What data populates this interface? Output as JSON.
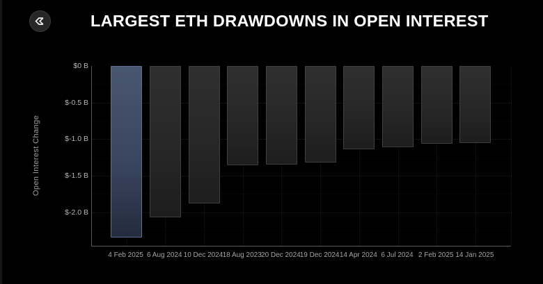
{
  "header": {
    "title": "LARGEST ETH DRAWDOWNS IN OPEN INTEREST",
    "logo": "sigma-mark"
  },
  "chart_data": {
    "type": "bar",
    "title": "LARGEST ETH DRAWDOWNS IN OPEN INTEREST",
    "categories": [
      "4 Feb 2025",
      "6 Aug 2024",
      "10 Dec 2024",
      "18 Aug 2023",
      "20 Dec 2024",
      "19 Dec 2024",
      "14 Apr 2024",
      "6 Jul 2024",
      "2 Feb 2025",
      "14 Jan 2025"
    ],
    "values": [
      -2.35,
      -2.07,
      -1.88,
      -1.36,
      -1.35,
      -1.32,
      -1.14,
      -1.11,
      -1.06,
      -1.05
    ],
    "unit": "billion USD",
    "xlabel": "",
    "ylabel": "Open Interest Change",
    "ylim": [
      -2.46,
      0
    ],
    "yticks": [
      {
        "value": 0,
        "label": "$0 B"
      },
      {
        "value": -0.5,
        "label": "$-0.5 B"
      },
      {
        "value": -1.0,
        "label": "$-1.0 B"
      },
      {
        "value": -1.5,
        "label": "$-1.5 B"
      },
      {
        "value": -2.0,
        "label": "$-2.0 B"
      }
    ],
    "grid": "horizontal-dotted, faint vertical",
    "legend": null,
    "highlight_index": 0,
    "colors": {
      "background": "#000000",
      "title": "#ffffff",
      "highlight_bar_top": "#49566f",
      "highlight_bar_bottom": "#242b3e",
      "highlight_bar_border": "#5e6f93",
      "bar_top": "#2f2f2f",
      "bar_bottom": "#1d1d1d",
      "bar_border": "#404040",
      "axis_line": "#5c5c5c",
      "tick_label": "#b5b5b5",
      "x_label": "#a5a5a5"
    }
  }
}
